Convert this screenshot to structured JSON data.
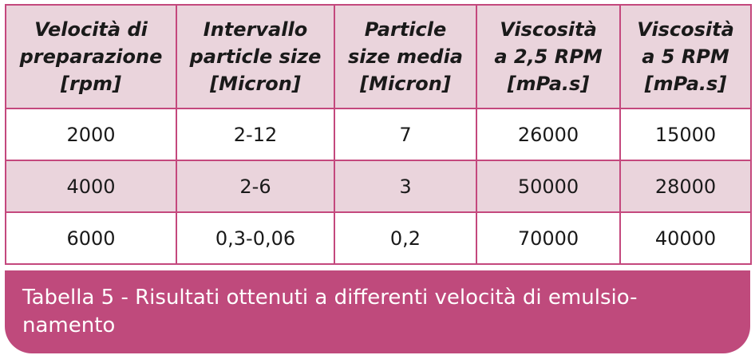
{
  "table": {
    "headers": [
      [
        "Velocità di",
        "preparazione",
        "[rpm]"
      ],
      [
        "Intervallo",
        "particle size",
        "[Micron]"
      ],
      [
        "Particle",
        "size media",
        "[Micron]"
      ],
      [
        "Viscosità",
        "a 2,5 RPM",
        "[mPa.s]"
      ],
      [
        "Viscosità",
        "a 5 RPM",
        "[mPa.s]"
      ]
    ],
    "rows": [
      [
        "2000",
        "2-12",
        "7",
        "26000",
        "15000"
      ],
      [
        "4000",
        "2-6",
        "3",
        "50000",
        "28000"
      ],
      [
        "6000",
        "0,3-0,06",
        "0,2",
        "70000",
        "40000"
      ]
    ]
  },
  "caption": {
    "line1": "Tabella 5 - Risultati ottenuti a differenti velocità di emulsio-",
    "line2": "namento"
  },
  "colors": {
    "border": "#c4487d",
    "header_bg": "#ead4dc",
    "caption_bg": "#bf4a7c"
  }
}
